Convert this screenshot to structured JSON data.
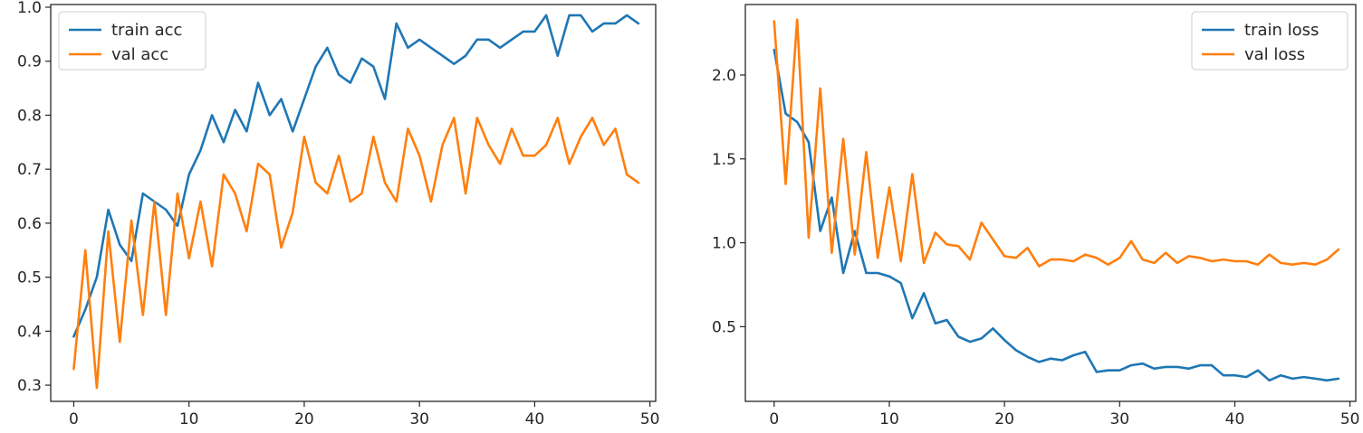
{
  "colors": {
    "series1": "#1f77b4",
    "series2": "#ff7f0e"
  },
  "chart_data": [
    {
      "type": "line",
      "title": "",
      "xlabel": "",
      "ylabel": "",
      "xlim": [
        -2,
        50.5
      ],
      "ylim": [
        0.27,
        1.005
      ],
      "xticks": [
        0,
        10,
        20,
        30,
        40,
        50
      ],
      "xtick_labels": [
        "0",
        "10",
        "20",
        "30",
        "40",
        "50"
      ],
      "yticks": [
        0.3,
        0.4,
        0.5,
        0.6,
        0.7,
        0.8,
        0.9,
        1.0
      ],
      "ytick_labels": [
        "0.3",
        "0.4",
        "0.5",
        "0.6",
        "0.7",
        "0.8",
        "0.9",
        "1.0"
      ],
      "grid": false,
      "legend": "top-left",
      "x": [
        0,
        1,
        2,
        3,
        4,
        5,
        6,
        7,
        8,
        9,
        10,
        11,
        12,
        13,
        14,
        15,
        16,
        17,
        18,
        19,
        20,
        21,
        22,
        23,
        24,
        25,
        26,
        27,
        28,
        29,
        30,
        31,
        32,
        33,
        34,
        35,
        36,
        37,
        38,
        39,
        40,
        41,
        42,
        43,
        44,
        45,
        46,
        47,
        48,
        49
      ],
      "series": [
        {
          "name": "train acc",
          "color": "#1f77b4",
          "values": [
            0.39,
            0.44,
            0.5,
            0.625,
            0.56,
            0.53,
            0.655,
            0.64,
            0.625,
            0.595,
            0.69,
            0.735,
            0.8,
            0.75,
            0.81,
            0.77,
            0.86,
            0.8,
            0.83,
            0.77,
            0.83,
            0.89,
            0.925,
            0.875,
            0.86,
            0.905,
            0.89,
            0.83,
            0.97,
            0.925,
            0.94,
            0.925,
            0.91,
            0.895,
            0.91,
            0.94,
            0.94,
            0.925,
            0.94,
            0.955,
            0.955,
            0.985,
            0.91,
            0.985,
            0.985,
            0.955,
            0.97,
            0.97,
            0.985,
            0.97
          ]
        },
        {
          "name": "val acc",
          "color": "#ff7f0e",
          "values": [
            0.33,
            0.55,
            0.295,
            0.585,
            0.38,
            0.605,
            0.43,
            0.64,
            0.43,
            0.655,
            0.535,
            0.64,
            0.52,
            0.69,
            0.655,
            0.585,
            0.71,
            0.69,
            0.555,
            0.62,
            0.76,
            0.675,
            0.655,
            0.725,
            0.64,
            0.655,
            0.76,
            0.675,
            0.64,
            0.775,
            0.725,
            0.64,
            0.745,
            0.795,
            0.655,
            0.795,
            0.745,
            0.71,
            0.775,
            0.725,
            0.725,
            0.745,
            0.795,
            0.71,
            0.76,
            0.795,
            0.745,
            0.775,
            0.69,
            0.675
          ]
        }
      ]
    },
    {
      "type": "line",
      "title": "",
      "xlabel": "",
      "ylabel": "",
      "xlim": [
        -2.5,
        50.5
      ],
      "ylim": [
        0.055,
        2.42
      ],
      "xticks": [
        0,
        10,
        20,
        30,
        40,
        50
      ],
      "xtick_labels": [
        "0",
        "10",
        "20",
        "30",
        "40",
        "50"
      ],
      "yticks": [
        0.5,
        1.0,
        1.5,
        2.0
      ],
      "ytick_labels": [
        "0.5",
        "1.0",
        "1.5",
        "2.0"
      ],
      "grid": false,
      "legend": "top-right",
      "x": [
        0,
        1,
        2,
        3,
        4,
        5,
        6,
        7,
        8,
        9,
        10,
        11,
        12,
        13,
        14,
        15,
        16,
        17,
        18,
        19,
        20,
        21,
        22,
        23,
        24,
        25,
        26,
        27,
        28,
        29,
        30,
        31,
        32,
        33,
        34,
        35,
        36,
        37,
        38,
        39,
        40,
        41,
        42,
        43,
        44,
        45,
        46,
        47,
        48,
        49
      ],
      "series": [
        {
          "name": "train loss",
          "color": "#1f77b4",
          "values": [
            2.15,
            1.77,
            1.72,
            1.6,
            1.07,
            1.27,
            0.82,
            1.07,
            0.82,
            0.82,
            0.8,
            0.76,
            0.55,
            0.7,
            0.52,
            0.54,
            0.44,
            0.41,
            0.43,
            0.49,
            0.42,
            0.36,
            0.32,
            0.29,
            0.31,
            0.3,
            0.33,
            0.35,
            0.23,
            0.24,
            0.24,
            0.27,
            0.28,
            0.25,
            0.26,
            0.26,
            0.25,
            0.27,
            0.27,
            0.21,
            0.21,
            0.2,
            0.24,
            0.18,
            0.21,
            0.19,
            0.2,
            0.19,
            0.18,
            0.19
          ]
        },
        {
          "name": "val loss",
          "color": "#ff7f0e",
          "values": [
            2.32,
            1.35,
            2.33,
            1.03,
            1.92,
            0.94,
            1.62,
            0.93,
            1.54,
            0.91,
            1.33,
            0.89,
            1.41,
            0.88,
            1.06,
            0.99,
            0.98,
            0.9,
            1.12,
            1.02,
            0.92,
            0.91,
            0.97,
            0.86,
            0.9,
            0.9,
            0.89,
            0.93,
            0.91,
            0.87,
            0.91,
            1.01,
            0.9,
            0.88,
            0.94,
            0.88,
            0.92,
            0.91,
            0.89,
            0.9,
            0.89,
            0.89,
            0.87,
            0.93,
            0.88,
            0.87,
            0.88,
            0.87,
            0.9,
            0.96
          ]
        }
      ]
    }
  ]
}
